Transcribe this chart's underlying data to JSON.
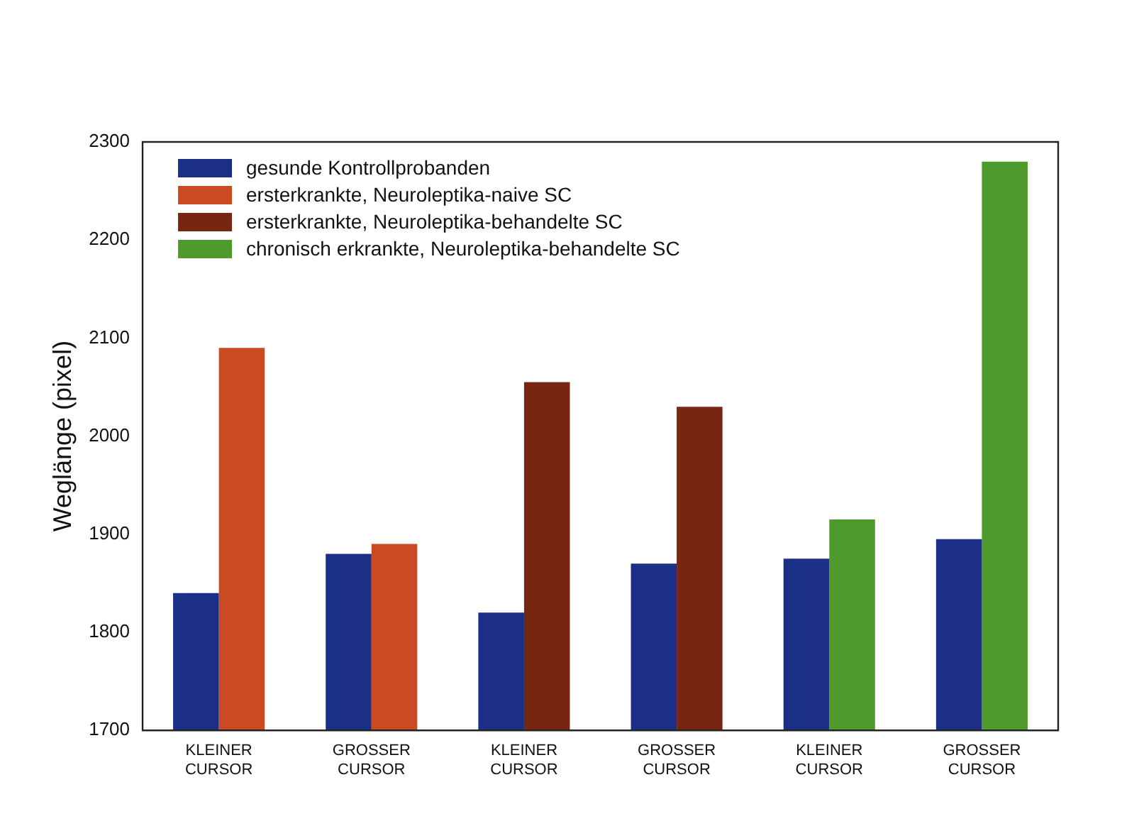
{
  "chart_data": {
    "type": "bar",
    "ylabel": "Weglänge (pixel)",
    "categories": [
      "KLEINER CURSOR",
      "GROSSER CURSOR",
      "KLEINER CURSOR",
      "GROSSER CURSOR",
      "KLEINER CURSOR",
      "GROSSER CURSOR"
    ],
    "series": [
      {
        "name": "gesunde Kontrollprobanden",
        "color": "#1c2f86",
        "values": [
          1840,
          1880,
          1820,
          1870,
          1875,
          1895
        ]
      },
      {
        "name": "ersterkrankte, Neuroleptika-naive SC",
        "color": "#cc4a22",
        "values": [
          2090,
          1890,
          null,
          null,
          null,
          null
        ]
      },
      {
        "name": "ersterkrankte, Neuroleptika-behandelte SC",
        "color": "#772612",
        "values": [
          null,
          null,
          2055,
          2030,
          null,
          null
        ]
      },
      {
        "name": "chronisch erkrankte, Neuroleptika-behandelte SC",
        "color": "#4f9a2c",
        "values": [
          null,
          null,
          null,
          null,
          1915,
          2280
        ]
      }
    ],
    "ylim": [
      1700,
      2300
    ],
    "yticks": [
      1700,
      1800,
      1900,
      2000,
      2100,
      2200,
      2300
    ],
    "grid": false,
    "legend": "top left"
  }
}
